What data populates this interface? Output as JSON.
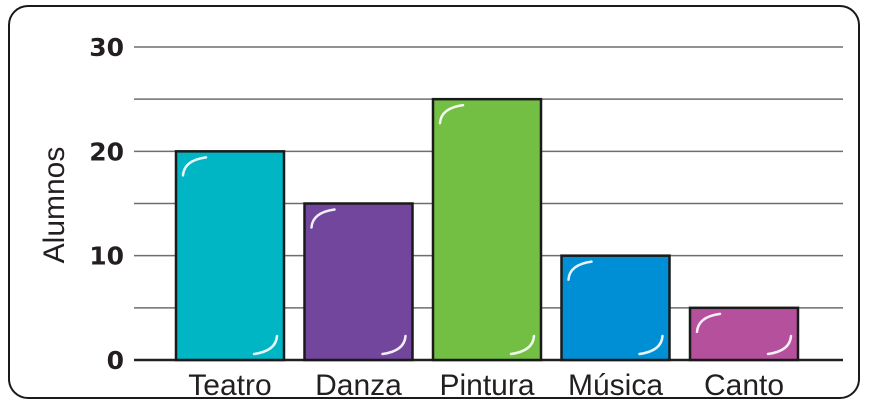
{
  "chart_data": {
    "type": "bar",
    "title": "",
    "xlabel": "",
    "ylabel": "Alumnos",
    "categories": [
      "Teatro",
      "Danza",
      "Pintura",
      "Música",
      "Canto"
    ],
    "values": [
      20,
      15,
      25,
      10,
      5
    ],
    "colors": [
      "#00b5c4",
      "#72469c",
      "#72bf44",
      "#008fd5",
      "#b5509c"
    ],
    "ylim": [
      0,
      30
    ],
    "yticks": [
      0,
      10,
      20,
      30
    ],
    "yticklabels": [
      "0",
      "10",
      "20",
      "30"
    ],
    "grid_step": 5,
    "grid": true,
    "legend": "none"
  }
}
